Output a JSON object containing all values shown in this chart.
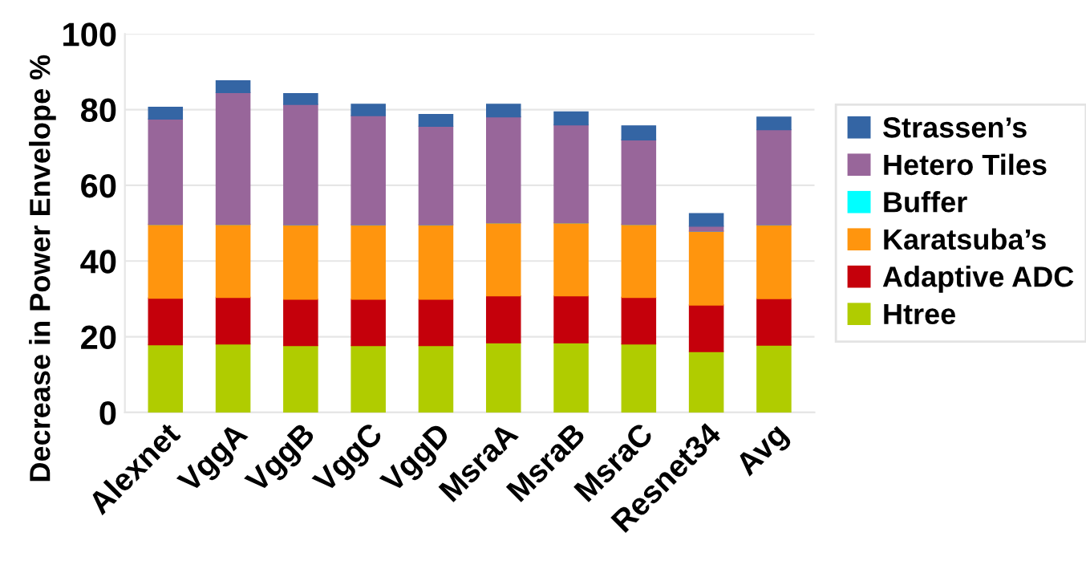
{
  "chart_data": {
    "type": "bar",
    "stacked": true,
    "ylabel": "Decrease in Power Envelope %",
    "categories": [
      "Alexnet",
      "VggA",
      "VggB",
      "VggC",
      "VggD",
      "MsraA",
      "MsraB",
      "MsraC",
      "Resnet34",
      "Avg"
    ],
    "series": [
      {
        "name": "Htree",
        "color": "#b0cc00",
        "values": [
          17.9,
          18.1,
          17.7,
          17.7,
          17.7,
          18.4,
          18.4,
          18.1,
          16.1,
          17.8
        ]
      },
      {
        "name": "Adaptive ADC",
        "color": "#c5000b",
        "values": [
          12.3,
          12.3,
          12.2,
          12.2,
          12.2,
          12.4,
          12.4,
          12.3,
          12.3,
          12.3
        ]
      },
      {
        "name": "Karatsuba’s",
        "color": "#ff950e",
        "values": [
          19.5,
          19.3,
          19.7,
          19.7,
          19.7,
          19.3,
          19.3,
          19.3,
          19.5,
          19.5
        ]
      },
      {
        "name": "Buffer",
        "color": "#00ffff",
        "values": [
          0,
          0,
          0,
          0,
          0,
          0,
          0,
          0,
          0,
          0
        ]
      },
      {
        "name": "Hetero Tiles",
        "color": "#98669a",
        "values": [
          27.8,
          34.8,
          31.8,
          28.8,
          26.0,
          28.0,
          25.9,
          22.3,
          1.3,
          25.1
        ]
      },
      {
        "name": "Strassen’s",
        "color": "#3465a4",
        "values": [
          3.1,
          3.1,
          2.8,
          3.0,
          3.1,
          3.3,
          3.4,
          3.7,
          3.3,
          3.3
        ]
      }
    ],
    "ylim": [
      0,
      100
    ],
    "yticks": [
      0,
      20,
      40,
      60,
      80,
      100
    ],
    "grid": "y",
    "legend": "right"
  }
}
